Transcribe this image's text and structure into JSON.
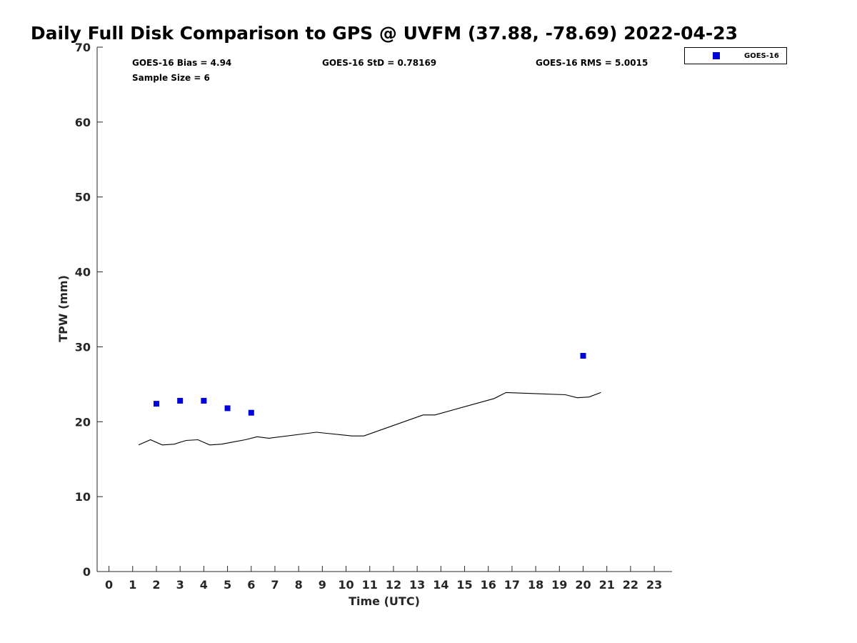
{
  "chart_data": {
    "type": "scatter",
    "title": "Daily Full Disk Comparison to GPS @ UVFM (37.88, -78.69) 2022-04-23",
    "xlabel": "Time (UTC)",
    "ylabel": "TPW (mm)",
    "xlim": [
      -0.5,
      23.75
    ],
    "ylim": [
      0,
      70
    ],
    "xticks": [
      0,
      1,
      2,
      3,
      4,
      5,
      6,
      7,
      8,
      9,
      10,
      11,
      12,
      13,
      14,
      15,
      16,
      17,
      18,
      19,
      20,
      21,
      22,
      23
    ],
    "yticks": [
      0,
      10,
      20,
      30,
      40,
      50,
      60,
      70
    ],
    "grid": false,
    "legend": {
      "position": "top-right",
      "entries": [
        "GOES-16"
      ]
    },
    "stats": {
      "bias": "GOES-16 Bias = 4.94",
      "std": "GOES-16 StD = 0.78169",
      "rms": "GOES-16 RMS = 5.0015",
      "sample_size": "Sample Size = 6"
    },
    "series": [
      {
        "name": "GOES-16",
        "kind": "scatter",
        "color": "#0000dd",
        "marker": "square",
        "x": [
          2,
          3,
          4,
          5,
          6,
          20
        ],
        "y": [
          22.4,
          22.8,
          22.8,
          21.8,
          21.2,
          28.8
        ]
      },
      {
        "kind": "line",
        "color": "#000000",
        "x": [
          1.25,
          1.75,
          2.25,
          2.75,
          3.25,
          3.75,
          4.25,
          4.75,
          5.25,
          5.75,
          6.25,
          6.75,
          8.75,
          10.25,
          10.75,
          13.25,
          13.75,
          16.25,
          16.75,
          19.25,
          19.75,
          20.25,
          20.75
        ],
        "y": [
          16.9,
          17.6,
          16.9,
          17.0,
          17.5,
          17.6,
          16.9,
          17.0,
          17.3,
          17.6,
          18.0,
          17.8,
          18.6,
          18.1,
          18.1,
          20.9,
          20.9,
          23.1,
          23.9,
          23.6,
          23.2,
          23.3,
          23.9
        ]
      }
    ]
  }
}
